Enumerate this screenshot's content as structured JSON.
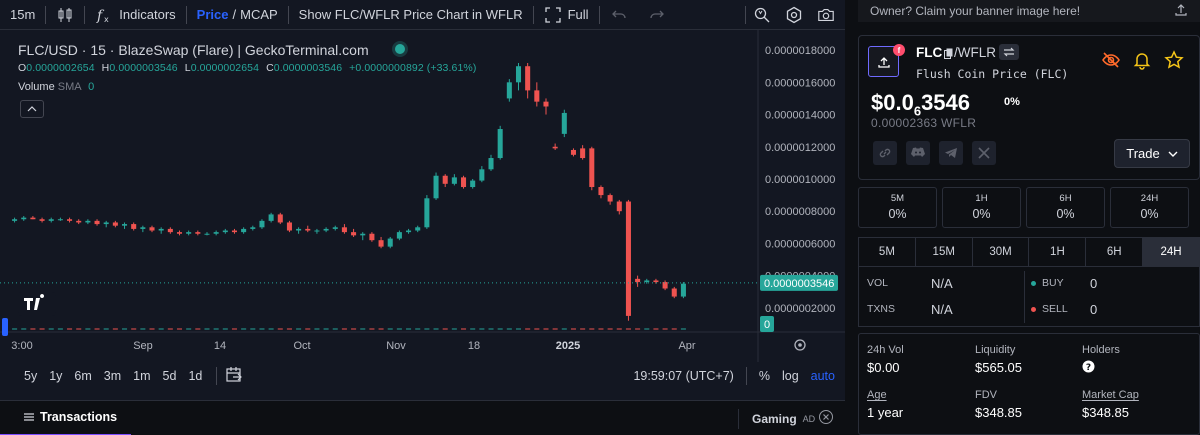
{
  "toolbar": {
    "interval": "15m",
    "indicators": "Indicators",
    "price_label": "Price",
    "mcap_label": "MCAP",
    "slash": "/",
    "show_chart": "Show FLC/WFLR Price Chart in WFLR",
    "full": "Full"
  },
  "legend": {
    "title": "FLC/USD · 15 · BlazeSwap (Flare) | GeckoTerminal.com",
    "open_label": "O",
    "open": "0.0000002654",
    "high_label": "H",
    "high": "0.0000003546",
    "low_label": "L",
    "low": "0.0000002654",
    "close_label": "C",
    "close": "0.0000003546",
    "change": "+0.0000000892 (+33.61%)",
    "volume_label": "Volume",
    "volume_ma": "SMA",
    "volume_value": "0"
  },
  "chart_data": {
    "type": "candlestick",
    "price_axis_ticks": [
      "0.0000018000",
      "0.0000016000",
      "0.0000014000",
      "0.0000012000",
      "0.0000010000",
      "0.0000008000",
      "0.0000006000",
      "0.0000004000",
      "0.0000002000"
    ],
    "current_price_label": "0.0000003546",
    "volume_label": "0",
    "x_axis_ticks": [
      "3:00",
      "Sep",
      "14",
      "Oct",
      "Nov",
      "18",
      "2025",
      "Apr"
    ],
    "ylim": [
      5e-08,
      1.9e-06
    ],
    "candles": [
      [
        7.4e-07,
        7.6e-07,
        7.3e-07,
        7.5e-07
      ],
      [
        7.5e-07,
        7.7e-07,
        7.4e-07,
        7.6e-07
      ],
      [
        7.6e-07,
        7.7e-07,
        7.5e-07,
        7.5e-07
      ],
      [
        7.5e-07,
        7.6e-07,
        7.3e-07,
        7.4e-07
      ],
      [
        7.4e-07,
        7.6e-07,
        7.3e-07,
        7.5e-07
      ],
      [
        7.5e-07,
        7.6e-07,
        7.4e-07,
        7.5e-07
      ],
      [
        7.5e-07,
        7.6e-07,
        7.3e-07,
        7.4e-07
      ],
      [
        7.4e-07,
        7.5e-07,
        7.2e-07,
        7.3e-07
      ],
      [
        7.3e-07,
        7.5e-07,
        7.2e-07,
        7.4e-07
      ],
      [
        7.4e-07,
        7.5e-07,
        7.1e-07,
        7.2e-07
      ],
      [
        7.2e-07,
        7.4e-07,
        7e-07,
        7.3e-07
      ],
      [
        7.3e-07,
        7.4e-07,
        7e-07,
        7.1e-07
      ],
      [
        7.1e-07,
        7.3e-07,
        6.9e-07,
        7.2e-07
      ],
      [
        7.2e-07,
        7.3e-07,
        6.8e-07,
        6.9e-07
      ],
      [
        6.9e-07,
        7.1e-07,
        6.7e-07,
        7e-07
      ],
      [
        7e-07,
        7.1e-07,
        6.7e-07,
        6.8e-07
      ],
      [
        6.8e-07,
        7e-07,
        6.6e-07,
        6.9e-07
      ],
      [
        6.9e-07,
        7e-07,
        6.6e-07,
        6.7e-07
      ],
      [
        6.7e-07,
        6.8e-07,
        6.5e-07,
        6.6e-07
      ],
      [
        6.6e-07,
        6.8e-07,
        6.5e-07,
        6.7e-07
      ],
      [
        6.7e-07,
        6.8e-07,
        6.5e-07,
        6.6e-07
      ],
      [
        6.6e-07,
        6.7e-07,
        6.5e-07,
        6.6e-07
      ],
      [
        6.6e-07,
        6.8e-07,
        6.5e-07,
        6.7e-07
      ],
      [
        6.7e-07,
        6.9e-07,
        6.6e-07,
        6.8e-07
      ],
      [
        6.8e-07,
        6.9e-07,
        6.6e-07,
        6.7e-07
      ],
      [
        6.7e-07,
        7e-07,
        6.6e-07,
        6.9e-07
      ],
      [
        6.9e-07,
        7.1e-07,
        6.8e-07,
        7e-07
      ],
      [
        7e-07,
        7.5e-07,
        6.9e-07,
        7.4e-07
      ],
      [
        7.4e-07,
        7.9e-07,
        7.3e-07,
        7.8e-07
      ],
      [
        7.8e-07,
        7.9e-07,
        7.2e-07,
        7.3e-07
      ],
      [
        7.3e-07,
        7.4e-07,
        6.7e-07,
        6.8e-07
      ],
      [
        6.8e-07,
        7e-07,
        6.6e-07,
        6.9e-07
      ],
      [
        6.9e-07,
        7.1e-07,
        6.7e-07,
        6.8e-07
      ],
      [
        6.8e-07,
        6.9e-07,
        6.6e-07,
        6.8e-07
      ],
      [
        6.8e-07,
        7e-07,
        6.7e-07,
        6.9e-07
      ],
      [
        6.9e-07,
        7.1e-07,
        6.8e-07,
        7e-07
      ],
      [
        7e-07,
        7.2e-07,
        6.6e-07,
        6.7e-07
      ],
      [
        6.7e-07,
        6.9e-07,
        6.4e-07,
        6.5e-07
      ],
      [
        6.5e-07,
        6.7e-07,
        6.2e-07,
        6.6e-07
      ],
      [
        6.6e-07,
        6.7e-07,
        6.1e-07,
        6.2e-07
      ],
      [
        6.2e-07,
        6.4e-07,
        5.7e-07,
        5.8e-07
      ],
      [
        5.8e-07,
        6.4e-07,
        5.7e-07,
        6.3e-07
      ],
      [
        6.3e-07,
        6.8e-07,
        6.2e-07,
        6.7e-07
      ],
      [
        6.7e-07,
        6.9e-07,
        6.6e-07,
        6.8e-07
      ],
      [
        6.8e-07,
        7.1e-07,
        6.7e-07,
        7e-07
      ],
      [
        7e-07,
        9e-07,
        6.9e-07,
        8.8e-07
      ],
      [
        8.8e-07,
        1.04e-06,
        8.7e-07,
        1.02e-06
      ],
      [
        1.02e-06,
        1.03e-06,
        9.5e-07,
        9.7e-07
      ],
      [
        9.7e-07,
        1.03e-06,
        9.6e-07,
        1.01e-06
      ],
      [
        1.01e-06,
        1.02e-06,
        9.4e-07,
        9.5e-07
      ],
      [
        9.5e-07,
        1e-06,
        9.4e-07,
        9.9e-07
      ],
      [
        9.9e-07,
        1.08e-06,
        9.8e-07,
        1.06e-06
      ],
      [
        1.06e-06,
        1.15e-06,
        1.05e-06,
        1.13e-06
      ],
      [
        1.13e-06,
        1.33e-06,
        1.12e-06,
        1.31e-06
      ],
      [
        1.5e-06,
        1.62e-06,
        1.48e-06,
        1.6e-06
      ],
      [
        1.6e-06,
        1.72e-06,
        1.55e-06,
        1.7e-06
      ],
      [
        1.7e-06,
        1.72e-06,
        1.5e-06,
        1.55e-06
      ],
      [
        1.55e-06,
        1.6e-06,
        1.45e-06,
        1.48e-06
      ],
      [
        1.48e-06,
        1.5e-06,
        1.4e-06,
        1.45e-06
      ],
      [
        1.2e-06,
        1.22e-06,
        1.18e-06,
        1.19e-06
      ],
      [
        1.28e-06,
        1.43e-06,
        1.26e-06,
        1.41e-06
      ],
      [
        1.18e-06,
        1.19e-06,
        1.14e-06,
        1.15e-06
      ],
      [
        1.19e-06,
        1.21e-06,
        1.12e-06,
        1.13e-06
      ],
      [
        1.19e-06,
        1.2e-06,
        9.3e-07,
        9.5e-07
      ],
      [
        9.5e-07,
        9.6e-07,
        8.8e-07,
        9e-07
      ],
      [
        9e-07,
        9.1e-07,
        8.4e-07,
        8.6e-07
      ],
      [
        8.6e-07,
        8.7e-07,
        7.8e-07,
        8e-07
      ],
      [
        8.6e-07,
        8.7e-07,
        1.2e-07,
        1.5e-07
      ],
      [
        3.8e-07,
        4e-07,
        3.3e-07,
        3.6e-07
      ],
      [
        3.6e-07,
        3.8e-07,
        3.5e-07,
        3.7e-07
      ],
      [
        3.7e-07,
        3.8e-07,
        3.5e-07,
        3.6e-07
      ],
      [
        3.6e-07,
        3.7e-07,
        3.1e-07,
        3.2e-07
      ],
      [
        3.2e-07,
        3.3e-07,
        2.6e-07,
        2.7e-07
      ],
      [
        2.7e-07,
        3.6e-07,
        2.6e-07,
        3.5e-07
      ]
    ]
  },
  "bottom_bar": {
    "ranges": [
      "5y",
      "1y",
      "6m",
      "3m",
      "1m",
      "5d",
      "1d"
    ],
    "time": "19:59:07 (UTC+7)",
    "percent": "%",
    "log": "log",
    "auto": "auto"
  },
  "transactions_bar": {
    "tab": "Transactions",
    "gaming": "Gaming",
    "ad": "AD"
  },
  "right": {
    "banner": "Owner? Claim your banner image here!",
    "token": {
      "symbol": "FLC",
      "quote": "/WFLR",
      "name": "Flush Coin Price (FLC)",
      "price_prefix": "$0.0",
      "price_sub": "6",
      "price_rest": "3546",
      "price_change": "0%",
      "price_wflr": "0.00002363 WFLR",
      "trade": "Trade"
    },
    "timeframe_boxes": [
      {
        "label": "5M",
        "value": "0%"
      },
      {
        "label": "1H",
        "value": "0%"
      },
      {
        "label": "6H",
        "value": "0%"
      },
      {
        "label": "24H",
        "value": "0%"
      }
    ],
    "tabs": [
      "5M",
      "15M",
      "30M",
      "1H",
      "6H",
      "24H"
    ],
    "active_tab": "24H",
    "stats": {
      "vol_label": "VOL",
      "vol": "N/A",
      "txns_label": "TXNS",
      "txns": "N/A",
      "buy_label": "BUY",
      "buy": "0",
      "sell_label": "SELL",
      "sell": "0"
    },
    "info": {
      "vol24_label": "24h Vol",
      "vol24": "$0.00",
      "liquidity_label": "Liquidity",
      "liquidity": "$565.05",
      "holders_label": "Holders",
      "age_label": "Age",
      "age": "1 year",
      "fdv_label": "FDV",
      "fdv": "$348.85",
      "mcap_label": "Market Cap",
      "mcap": "$348.85"
    }
  }
}
